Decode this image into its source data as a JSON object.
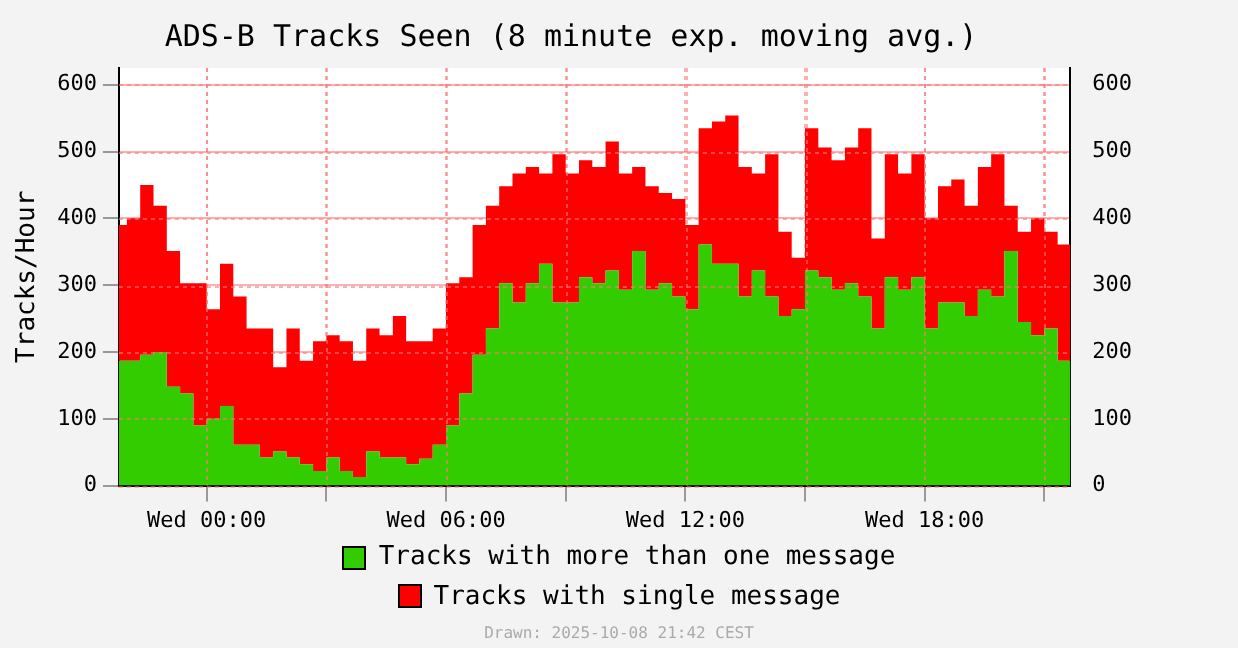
{
  "chart_data": {
    "type": "area",
    "stacked": true,
    "title": "ADS-B Tracks Seen (8 minute exp. moving avg.)",
    "ylabel": "Tracks/Hour",
    "annotations": [
      "Drawn: 2025-10-08 21:42 CEST"
    ],
    "x": [
      "2025-10-07T21:48",
      "2025-10-07T22:00",
      "2025-10-07T22:20",
      "2025-10-07T22:40",
      "2025-10-07T23:00",
      "2025-10-07T23:20",
      "2025-10-07T23:40",
      "2025-10-08T00:00",
      "2025-10-08T00:20",
      "2025-10-08T00:40",
      "2025-10-08T01:00",
      "2025-10-08T01:20",
      "2025-10-08T01:40",
      "2025-10-08T02:00",
      "2025-10-08T02:20",
      "2025-10-08T02:40",
      "2025-10-08T03:00",
      "2025-10-08T03:20",
      "2025-10-08T03:40",
      "2025-10-08T04:00",
      "2025-10-08T04:20",
      "2025-10-08T04:40",
      "2025-10-08T05:00",
      "2025-10-08T05:20",
      "2025-10-08T05:40",
      "2025-10-08T06:00",
      "2025-10-08T06:20",
      "2025-10-08T06:40",
      "2025-10-08T07:00",
      "2025-10-08T07:20",
      "2025-10-08T07:40",
      "2025-10-08T08:00",
      "2025-10-08T08:20",
      "2025-10-08T08:40",
      "2025-10-08T09:00",
      "2025-10-08T09:20",
      "2025-10-08T09:40",
      "2025-10-08T10:00",
      "2025-10-08T10:20",
      "2025-10-08T10:40",
      "2025-10-08T11:00",
      "2025-10-08T11:20",
      "2025-10-08T11:40",
      "2025-10-08T12:00",
      "2025-10-08T12:20",
      "2025-10-08T12:40",
      "2025-10-08T13:00",
      "2025-10-08T13:20",
      "2025-10-08T13:40",
      "2025-10-08T14:00",
      "2025-10-08T14:20",
      "2025-10-08T14:40",
      "2025-10-08T15:00",
      "2025-10-08T15:20",
      "2025-10-08T15:40",
      "2025-10-08T16:00",
      "2025-10-08T16:20",
      "2025-10-08T16:40",
      "2025-10-08T17:00",
      "2025-10-08T17:20",
      "2025-10-08T17:40",
      "2025-10-08T18:00",
      "2025-10-08T18:20",
      "2025-10-08T18:40",
      "2025-10-08T19:00",
      "2025-10-08T19:20",
      "2025-10-08T19:40",
      "2025-10-08T20:00",
      "2025-10-08T20:20",
      "2025-10-08T20:40",
      "2025-10-08T21:00",
      "2025-10-08T21:20",
      "2025-10-08T21:39"
    ],
    "series": [
      {
        "name": "Tracks with more than one message",
        "color": "#33cc00",
        "values": [
          187,
          187,
          196,
          200,
          148,
          138,
          90,
          100,
          119,
          61,
          61,
          42,
          51,
          42,
          32,
          22,
          42,
          22,
          13,
          51,
          42,
          42,
          32,
          40,
          61,
          90,
          138,
          196,
          235,
          303,
          274,
          303,
          332,
          274,
          274,
          312,
          303,
          322,
          293,
          351,
          293,
          303,
          283,
          264,
          361,
          332,
          332,
          283,
          322,
          283,
          254,
          264,
          322,
          312,
          293,
          303,
          283,
          235,
          312,
          293,
          312,
          235,
          274,
          274,
          254,
          293,
          283,
          351,
          245,
          225,
          235,
          187,
          254
        ]
      },
      {
        "name": "Tracks with single message",
        "color": "#ff0000",
        "values": [
          203,
          213,
          254,
          219,
          203,
          165,
          213,
          164,
          213,
          222,
          174,
          193,
          126,
          193,
          155,
          194,
          183,
          194,
          174,
          184,
          183,
          212,
          184,
          176,
          174,
          213,
          174,
          194,
          184,
          145,
          193,
          174,
          135,
          222,
          193,
          175,
          174,
          193,
          174,
          126,
          155,
          135,
          146,
          126,
          174,
          213,
          222,
          194,
          145,
          213,
          126,
          77,
          213,
          194,
          194,
          203,
          252,
          135,
          184,
          174,
          184,
          165,
          174,
          184,
          165,
          184,
          213,
          68,
          135,
          175,
          145,
          174,
          194
        ]
      }
    ],
    "xlim": [
      "2025-10-07T21:48",
      "2025-10-08T21:39"
    ],
    "xticks": [
      {
        "value": "2025-10-08T00:00",
        "label": "Wed 00:00"
      },
      {
        "value": "2025-10-08T03:00",
        "label": null
      },
      {
        "value": "2025-10-08T06:00",
        "label": "Wed 06:00"
      },
      {
        "value": "2025-10-08T09:00",
        "label": null
      },
      {
        "value": "2025-10-08T12:00",
        "label": "Wed 12:00"
      },
      {
        "value": "2025-10-08T15:00",
        "label": null
      },
      {
        "value": "2025-10-08T18:00",
        "label": "Wed 18:00"
      },
      {
        "value": "2025-10-08T21:00",
        "label": null
      }
    ],
    "ylim": [
      0,
      625
    ],
    "yticks": [
      0,
      100,
      200,
      300,
      400,
      500,
      600
    ],
    "y2lim": [
      0,
      625
    ],
    "y2ticks": [
      0,
      100,
      200,
      300,
      400,
      500,
      600
    ],
    "grid": true,
    "legend": "bottom"
  }
}
